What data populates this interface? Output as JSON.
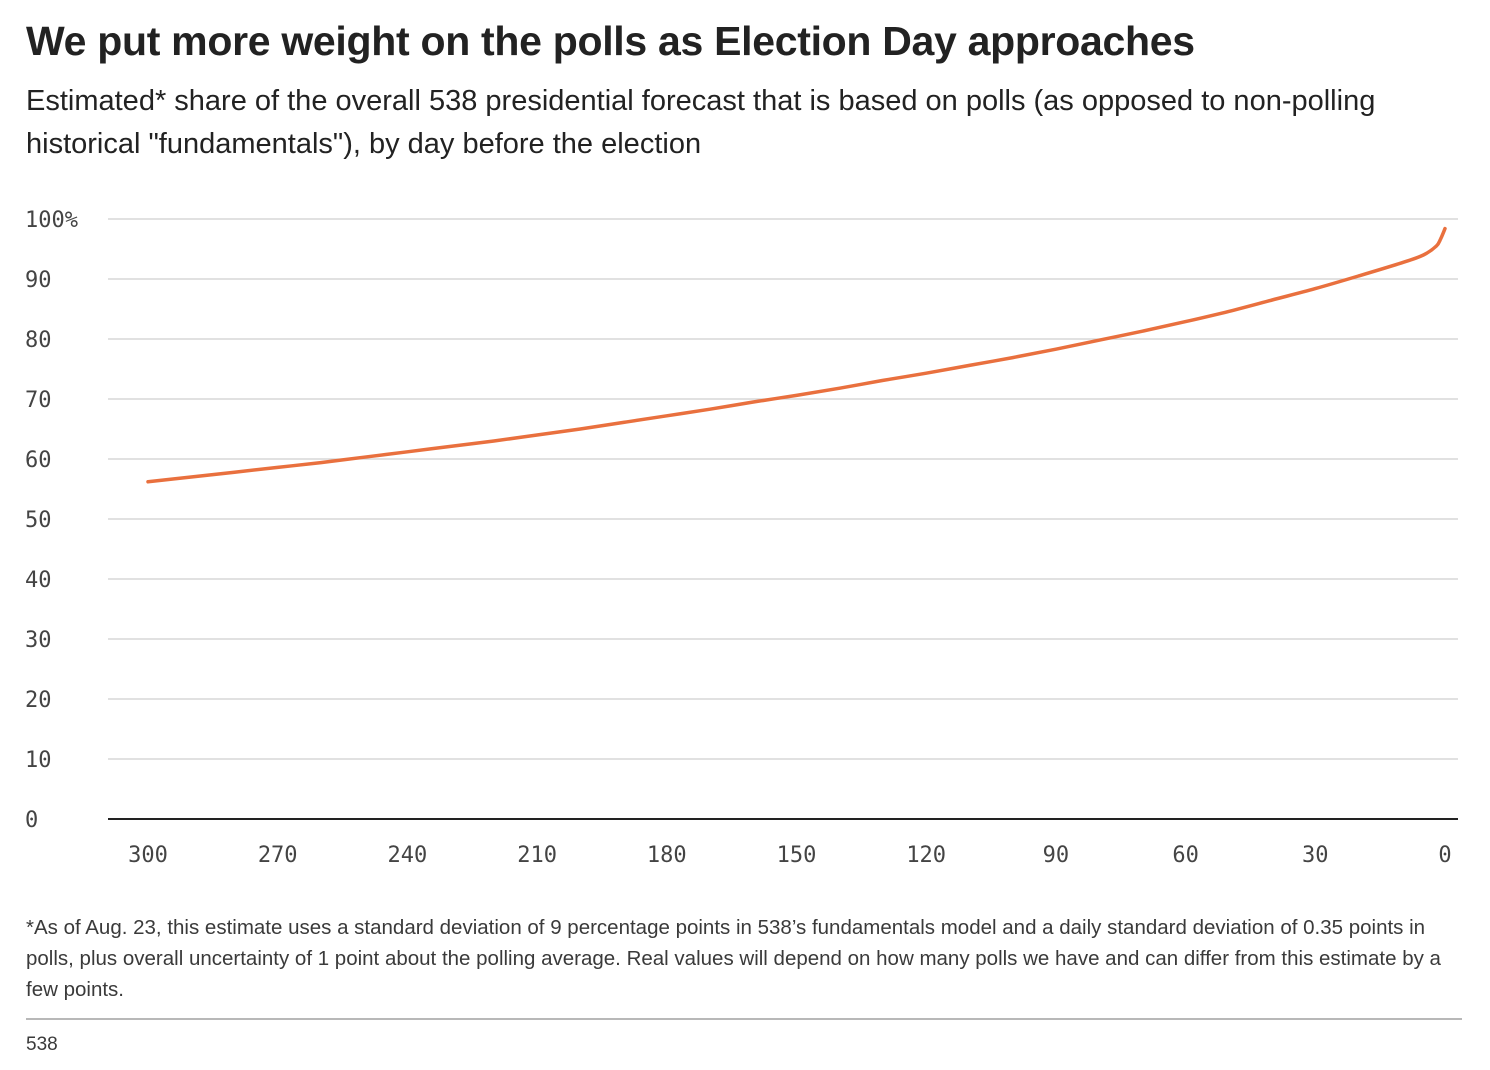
{
  "chart_data": {
    "type": "line",
    "title": "We put more weight on the polls as Election Day approaches",
    "subtitle": "Estimated* share of the overall 538 presidential forecast that is based on polls (as opposed to non-polling historical \"fundamentals\"), by day before the election",
    "xlabel": "",
    "ylabel": "",
    "x_reversed": true,
    "xlim": [
      300,
      0
    ],
    "ylim": [
      0,
      100
    ],
    "x_ticks": [
      300,
      270,
      240,
      210,
      180,
      150,
      120,
      90,
      60,
      30,
      0
    ],
    "x_tick_labels": [
      "300",
      "270",
      "240",
      "210",
      "180",
      "150",
      "120",
      "90",
      "60",
      "30",
      "0"
    ],
    "y_ticks": [
      0,
      10,
      20,
      30,
      40,
      50,
      60,
      70,
      80,
      90,
      100
    ],
    "y_tick_labels": [
      "0",
      "10",
      "20",
      "30",
      "40",
      "50",
      "60",
      "70",
      "80",
      "90",
      "100%"
    ],
    "grid": true,
    "series": [
      {
        "color": "#e9703e",
        "points": [
          [
            300,
            56.2
          ],
          [
            290,
            57.0
          ],
          [
            280,
            57.8
          ],
          [
            270,
            58.6
          ],
          [
            260,
            59.4
          ],
          [
            250,
            60.3
          ],
          [
            240,
            61.2
          ],
          [
            230,
            62.1
          ],
          [
            220,
            63.0
          ],
          [
            210,
            64.0
          ],
          [
            200,
            65.0
          ],
          [
            190,
            66.1
          ],
          [
            180,
            67.2
          ],
          [
            170,
            68.3
          ],
          [
            160,
            69.5
          ],
          [
            150,
            70.6
          ],
          [
            140,
            71.8
          ],
          [
            130,
            73.1
          ],
          [
            120,
            74.3
          ],
          [
            110,
            75.6
          ],
          [
            100,
            76.9
          ],
          [
            90,
            78.3
          ],
          [
            80,
            79.8
          ],
          [
            70,
            81.3
          ],
          [
            60,
            82.9
          ],
          [
            50,
            84.6
          ],
          [
            40,
            86.5
          ],
          [
            30,
            88.4
          ],
          [
            20,
            90.5
          ],
          [
            10,
            92.7
          ],
          [
            5,
            94.0
          ],
          [
            2,
            95.5
          ],
          [
            1,
            96.7
          ],
          [
            0,
            98.4
          ]
        ]
      }
    ]
  },
  "footnote": "*As of Aug. 23, this estimate uses a standard deviation of 9 percentage points in 538’s fundamentals model and a daily standard deviation of 0.35 points in polls, plus overall uncertainty of 1 point about the polling average. Real values will depend on how many polls we have and can differ from this estimate by a few points.",
  "source": "538",
  "colors": {
    "line": "#e9703e",
    "grid": "#cfcfcf",
    "baseline": "#222222"
  }
}
